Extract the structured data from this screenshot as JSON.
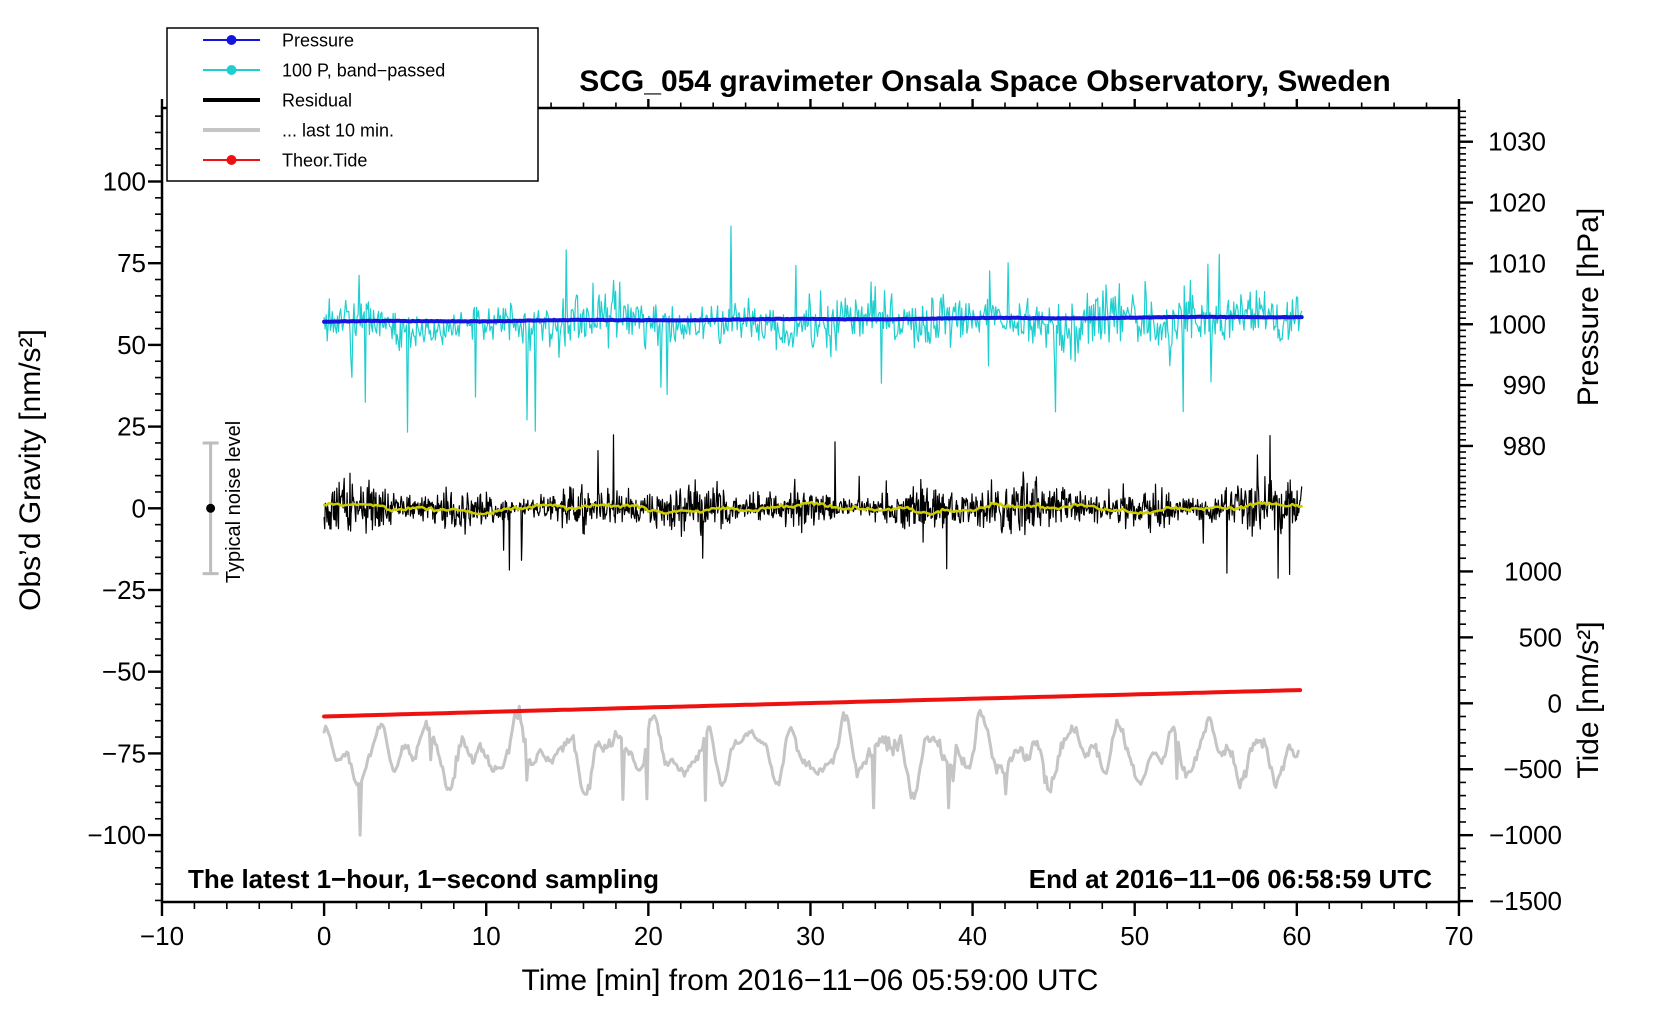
{
  "title": "SCG_054 gravimeter Onsala Space Observatory, Sweden",
  "annotations": {
    "sampling_note": "The latest 1−hour, 1−second sampling",
    "end_note": "End at 2016−11−06 06:58:59 UTC",
    "noise_note": "Typical noise level"
  },
  "axes": {
    "x": {
      "title": "Time [min] from 2016−11−06 05:59:00 UTC",
      "min": -10,
      "max": 70,
      "major_step": 10,
      "minor_step": 2,
      "major_values": [
        -10,
        0,
        10,
        20,
        30,
        40,
        50,
        60,
        70
      ],
      "major_labels": [
        "−10",
        "0",
        "10",
        "20",
        "30",
        "40",
        "50",
        "60",
        "70"
      ]
    },
    "gravity": {
      "title": "Obs’d Gravity [nm/s²]",
      "side": "left",
      "major_step": 25,
      "minor_step": 5,
      "major_values": [
        -100,
        -75,
        -50,
        -25,
        0,
        25,
        50,
        75,
        100
      ],
      "major_labels": [
        "−100",
        "−75",
        "−50",
        "−25",
        "0",
        "25",
        "50",
        "75",
        "100"
      ]
    },
    "pressure": {
      "title": "Pressure [hPa]",
      "side": "right-upper",
      "major_step": 10,
      "minor_step": 1,
      "major_values": [
        980,
        990,
        1000,
        1010,
        1020,
        1030
      ],
      "major_labels": [
        "980",
        "990",
        "1000",
        "1010",
        "1020",
        "1030"
      ]
    },
    "tide": {
      "title": "Tide [nm/s²]",
      "side": "right-lower",
      "major_step": 500,
      "minor_step": 100,
      "major_values": [
        -1500,
        -1000,
        -500,
        0,
        500,
        1000
      ],
      "major_labels": [
        "−1500",
        "−1000",
        "−500",
        "0",
        "500",
        "1000"
      ]
    }
  },
  "legend": {
    "items": [
      {
        "label": "Pressure",
        "color": "#1414dd",
        "marker": "dot-line",
        "line_width": 2
      },
      {
        "label": "100 P, band−passed",
        "color": "#1fcfcf",
        "marker": "dot-line",
        "line_width": 2
      },
      {
        "label": "Residual",
        "color": "#000000",
        "marker": "thick-line",
        "line_width": 4
      },
      {
        "label": "... last 10 min.",
        "color": "#c5c5c5",
        "marker": "thick-line",
        "line_width": 4
      },
      {
        "label": "Theor.Tide",
        "color": "#ee1111",
        "marker": "dot-line",
        "line_width": 2
      }
    ]
  },
  "noise_indicator": {
    "center_value": 0,
    "half_range": 20,
    "scale": "gravity",
    "time_position": -7,
    "bar_color": "#bdbdbd",
    "dot_color": "#000000"
  },
  "chart_data": {
    "type": "line",
    "title": "SCG_054 gravimeter Onsala Space Observatory, Sweden",
    "xlabel": "Time [min] from 2016−11−06 05:59:00 UTC",
    "x_range_min": [
      -10,
      70
    ],
    "gravity_axis_range": [
      -121,
      122
    ],
    "pressure_axis_range_hpa": [
      970,
      1035
    ],
    "tide_axis_range": [
      -1500,
      1400
    ],
    "grid": false,
    "legend_position": "top-left",
    "series": [
      {
        "name": "100 P, band−passed",
        "color": "#1fcfcf",
        "scale": "gravity",
        "width": 1.2,
        "summary": {
          "center": 56,
          "typical_peak_to_peak": 25,
          "down_spikes_to": 22,
          "max_peak": 107,
          "t_start": 0,
          "t_end": 60.3
        },
        "gen": {
          "seed": 11,
          "n": 950,
          "t0": 0,
          "t1": 60.3,
          "base": 56.4,
          "trend": 0.018,
          "sines": [
            [
              1.4,
              0.8,
              0.0
            ],
            [
              1.0,
              0.33,
              2.0
            ]
          ],
          "noise": 5.6,
          "env_sines": [
            [
              0.3,
              0.37,
              2.0
            ]
          ],
          "env_trend": 0.011,
          "spike_down_p": 0.016,
          "spike_down_mag": 21,
          "spike_up_p": 0.007,
          "spike_up_mag": 20
        }
      },
      {
        "name": "Pressure",
        "color": "#1414dd",
        "scale": "pressure",
        "width": 4,
        "summary": {
          "start_hpa": 1000.4,
          "end_hpa": 1001.3,
          "t_start": 0,
          "t_end": 60.3
        },
        "gen": {
          "seed": 7,
          "n": 520,
          "t0": 0,
          "t1": 60.3,
          "base": 1000.42,
          "trend": 0.0135,
          "sines": [
            [
              0.07,
              0.5,
              0.0
            ]
          ],
          "noise": 0.05,
          "env_sines": [],
          "env_trend": 0,
          "spike_down_p": 0,
          "spike_down_mag": 0,
          "spike_up_p": 0,
          "spike_up_mag": 0
        }
      },
      {
        "name": "Residual",
        "color": "#000000",
        "scale": "gravity",
        "width": 1.2,
        "summary": {
          "mean": 0,
          "typical_range": 10,
          "burst_spikes_to": 28,
          "t_start": 0,
          "t_end": 60.3
        },
        "gen": {
          "seed": 13,
          "n": 1700,
          "t0": 0,
          "t1": 60.3,
          "base": 0,
          "trend": 0,
          "sines": [
            [
              0.4,
              0.45,
              0.7
            ]
          ],
          "noise": 5.0,
          "env_sines": [
            [
              0.35,
              0.9,
              0.0
            ],
            [
              0.25,
              0.31,
              1.2
            ]
          ],
          "env_trend": 0.004,
          "spike_down_p": 0.006,
          "spike_down_mag": 14,
          "spike_up_p": 0.006,
          "spike_up_mag": 14
        }
      },
      {
        "name": "Residual low-pass",
        "color": "#cccc00",
        "scale": "gravity",
        "width": 2.5,
        "summary": {
          "mean": 0,
          "typical_range": 2,
          "t_start": 0,
          "t_end": 60.3
        },
        "gen": {
          "seed": 5,
          "n": 420,
          "t0": 0,
          "t1": 60.3,
          "base": 0,
          "trend": 0,
          "sines": [
            [
              0.9,
              0.45,
              0.7
            ],
            [
              0.5,
              1.1,
              0.0
            ],
            [
              0.4,
              2.3,
              1.0
            ]
          ],
          "noise": 0.55,
          "env_sines": [],
          "env_trend": 0,
          "spike_down_p": 0,
          "spike_down_mag": 0,
          "spike_up_p": 0,
          "spike_up_mag": 0
        }
      },
      {
        "name": "... last 10 min.",
        "color": "#c5c5c5",
        "scale": "gravity",
        "width": 3,
        "summary": {
          "offset_center": -75,
          "typical_range": 10,
          "deep_dips_to": -103,
          "t_start": 0,
          "t_end": 60.1
        },
        "gen": {
          "seed": 21,
          "n": 650,
          "t0": 0,
          "t1": 60.1,
          "base": -75,
          "trend": 0,
          "sines": [
            [
              5.5,
              2.2,
              0.4
            ],
            [
              3.5,
              3.7,
              1.9
            ],
            [
              2.5,
              0.9,
              3.1
            ],
            [
              2.0,
              5.3,
              0.7
            ]
          ],
          "noise": 1.6,
          "env_sines": [
            [
              0.4,
              0.25,
              4.4
            ]
          ],
          "env_trend": 0.004,
          "spike_down_p": 0.012,
          "spike_down_mag": 13,
          "spike_up_p": 0,
          "spike_up_mag": 0
        }
      },
      {
        "name": "Theor.Tide",
        "color": "#ee1111",
        "scale": "tide",
        "width": 4,
        "summary": {
          "start": -100,
          "end": 101,
          "t_start": 0,
          "t_end": 60.2
        },
        "gen": {
          "seed": 3,
          "n": 140,
          "t0": 0,
          "t1": 60.2,
          "base": -100,
          "trend": 3.34,
          "sines": [
            [
              1.5,
              0.06,
              0.0
            ]
          ],
          "noise": 0,
          "env_sines": [],
          "env_trend": 0,
          "spike_down_p": 0,
          "spike_down_mag": 0,
          "spike_up_p": 0,
          "spike_up_mag": 0
        }
      }
    ]
  }
}
